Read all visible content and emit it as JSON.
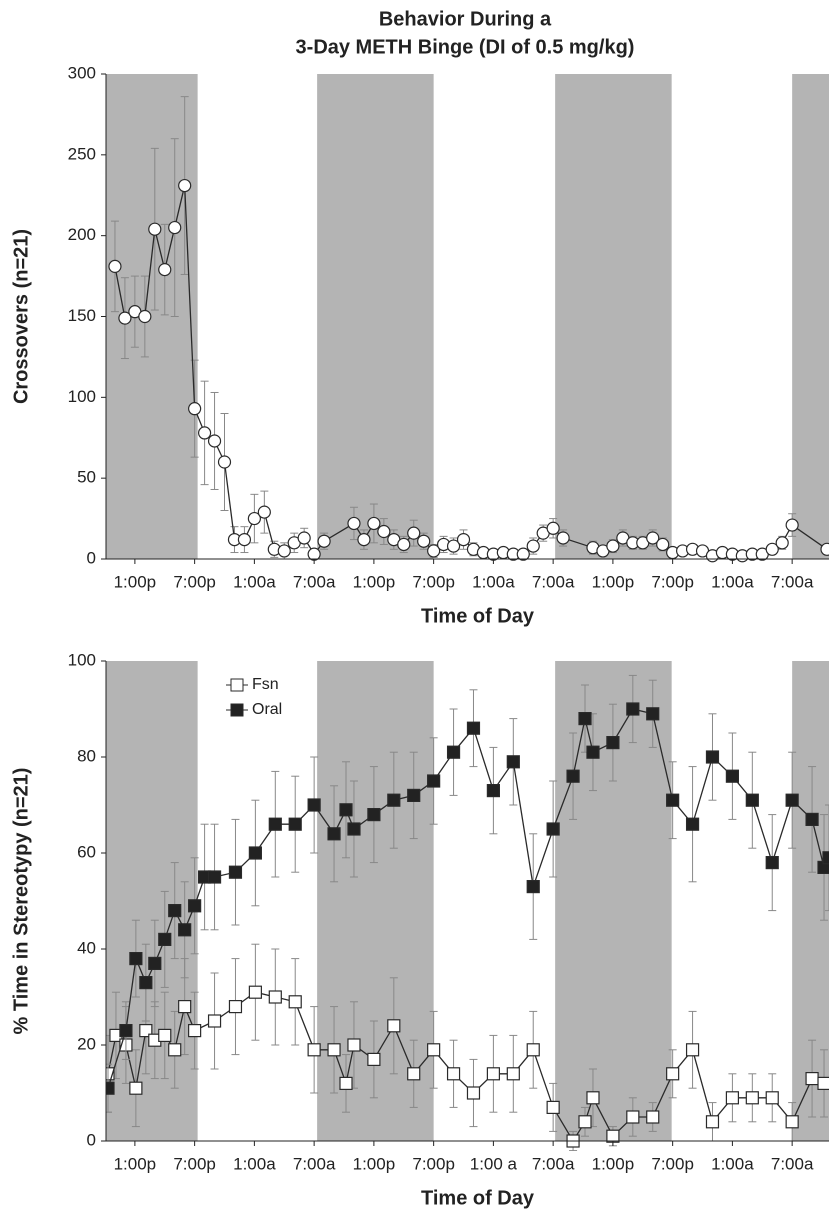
{
  "chart_data": [
    {
      "type": "line",
      "title": [
        "Behavior During a",
        "3-Day METH Binge (DI of 0.5 mg/kg)"
      ],
      "xlabel": "Time of Day",
      "ylabel": "Crossovers (n=21)",
      "xlim": [
        -2.9,
        69.7
      ],
      "ylim": [
        0,
        300
      ],
      "yticks": [
        0,
        50,
        100,
        150,
        200,
        250,
        300
      ],
      "xticks": [
        {
          "value": 0,
          "label": "1:00p"
        },
        {
          "value": 6,
          "label": "7:00p"
        },
        {
          "value": 12,
          "label": "1:00a"
        },
        {
          "value": 18,
          "label": "7:00a"
        },
        {
          "value": 24,
          "label": "1:00p"
        },
        {
          "value": 30,
          "label": "7:00p"
        },
        {
          "value": 36,
          "label": "1:00a"
        },
        {
          "value": 42,
          "label": "7:00a"
        },
        {
          "value": 48,
          "label": "1:00p"
        },
        {
          "value": 54,
          "label": "7:00p"
        },
        {
          "value": 60,
          "label": "1:00a"
        },
        {
          "value": 66,
          "label": "7:00a"
        }
      ],
      "shaded_spans": [
        [
          -2.9,
          6.3
        ],
        [
          18.3,
          30
        ],
        [
          42.2,
          53.9
        ],
        [
          66,
          69.7
        ]
      ],
      "shade_color": "#b4b4b4",
      "series": [
        {
          "marker": "circle",
          "color": "#2a2a2a",
          "marker_fill": "#ffffff",
          "x": [
            -2,
            -1,
            0,
            1,
            2,
            3,
            4,
            5,
            6,
            7,
            8,
            9,
            10,
            11,
            12,
            13,
            14,
            15,
            16,
            17,
            18,
            19,
            22,
            23,
            24,
            25,
            26,
            27,
            28,
            29,
            30,
            31,
            32,
            33,
            34,
            35,
            36,
            37,
            38,
            39,
            40,
            41,
            42,
            43,
            46,
            47,
            48,
            49,
            50,
            51,
            52,
            53,
            54,
            55,
            56,
            57,
            58,
            59,
            60,
            61,
            62,
            63,
            64,
            65,
            66,
            69.5
          ],
          "values": [
            181,
            149,
            153,
            150,
            204,
            179,
            205,
            231,
            93,
            78,
            73,
            60,
            12,
            12,
            25,
            29,
            6,
            5,
            10,
            13,
            3,
            11,
            22,
            12,
            22,
            17,
            12,
            9,
            16,
            11,
            5,
            9,
            8,
            12,
            6,
            4,
            3,
            4,
            3,
            3,
            8,
            16,
            19,
            13,
            7,
            5,
            8,
            13,
            10,
            10,
            13,
            9,
            4,
            5,
            6,
            5,
            2,
            4,
            3,
            2,
            3,
            3,
            6,
            10,
            21,
            6
          ],
          "errors": [
            28,
            25,
            22,
            25,
            50,
            28,
            55,
            55,
            30,
            32,
            30,
            30,
            8,
            8,
            15,
            13,
            5,
            5,
            6,
            6,
            3,
            5,
            10,
            6,
            12,
            8,
            6,
            5,
            8,
            5,
            4,
            5,
            5,
            6,
            4,
            3,
            3,
            3,
            3,
            3,
            5,
            5,
            6,
            5,
            4,
            3,
            4,
            5,
            4,
            4,
            5,
            4,
            3,
            3,
            3,
            3,
            2,
            3,
            2,
            2,
            2,
            2,
            3,
            4,
            7,
            3
          ]
        }
      ]
    },
    {
      "type": "line",
      "xlabel": "Time of Day",
      "ylabel": "% Time in Stereotypy (n=21)",
      "xlim": [
        -2.9,
        69.7
      ],
      "ylim": [
        0,
        100
      ],
      "yticks": [
        0,
        20,
        40,
        60,
        80,
        100
      ],
      "xticks": [
        {
          "value": 0,
          "label": "1:00p"
        },
        {
          "value": 6,
          "label": "7:00p"
        },
        {
          "value": 12,
          "label": "1:00a"
        },
        {
          "value": 18,
          "label": "7:00a"
        },
        {
          "value": 24,
          "label": "1:00p"
        },
        {
          "value": 30,
          "label": "7:00p"
        },
        {
          "value": 36,
          "label": "1:00 a"
        },
        {
          "value": 42,
          "label": "7:00a"
        },
        {
          "value": 48,
          "label": "1:00p"
        },
        {
          "value": 54,
          "label": "7:00p"
        },
        {
          "value": 60,
          "label": "1:00a"
        },
        {
          "value": 66,
          "label": "7:00a"
        }
      ],
      "shaded_spans": [
        [
          -2.9,
          6.3
        ],
        [
          18.3,
          30
        ],
        [
          42.2,
          53.9
        ],
        [
          66,
          69.7
        ]
      ],
      "shade_color": "#b4b4b4",
      "legend": "upper left",
      "series": [
        {
          "name": "Fsn",
          "marker": "square",
          "color": "#2a2a2a",
          "marker_fill": "#ffffff",
          "x": [
            -2.7,
            -1.9,
            -0.9,
            0.1,
            1.1,
            2,
            3,
            4,
            5,
            6,
            8,
            10.1,
            12.1,
            14.1,
            16.1,
            18,
            20,
            21.2,
            22,
            24,
            26,
            28,
            30,
            32,
            34,
            36,
            38,
            40,
            42,
            44,
            45.2,
            46,
            48,
            50,
            52,
            54,
            56,
            58,
            60,
            62,
            64,
            66,
            68,
            69.2
          ],
          "values": [
            14,
            22,
            20,
            11,
            23,
            21,
            22,
            19,
            28,
            23,
            25,
            28,
            31,
            30,
            29,
            19,
            19,
            12,
            20,
            17,
            24,
            14,
            19,
            14,
            10,
            14,
            14,
            19,
            7,
            0,
            4,
            9,
            1,
            5,
            5,
            14,
            19,
            4,
            9,
            9,
            9,
            4,
            13,
            12
          ],
          "errors": [
            8,
            9,
            8,
            8,
            9,
            8,
            9,
            8,
            10,
            8,
            10,
            10,
            10,
            10,
            9,
            9,
            9,
            6,
            9,
            8,
            10,
            7,
            8,
            7,
            7,
            8,
            8,
            8,
            5,
            2,
            3,
            6,
            2,
            4,
            3,
            5,
            8,
            4,
            5,
            5,
            5,
            4,
            8,
            7
          ]
        },
        {
          "name": "Oral",
          "marker": "square",
          "color": "#2a2a2a",
          "marker_fill": "#222222",
          "x": [
            -2.7,
            -0.9,
            0.1,
            1.1,
            2,
            3,
            4,
            5,
            6,
            7,
            8,
            10.1,
            12.1,
            14.1,
            16.1,
            18,
            20,
            21.2,
            22,
            24,
            26,
            28,
            30,
            32,
            34,
            36,
            38,
            40,
            42,
            44,
            45.2,
            46,
            48,
            50,
            52,
            54,
            56,
            58,
            60,
            62,
            64,
            66,
            68,
            69.2,
            69.7
          ],
          "values": [
            11,
            23,
            38,
            33,
            37,
            42,
            48,
            44,
            49,
            55,
            55,
            56,
            60,
            66,
            66,
            70,
            64,
            69,
            65,
            68,
            71,
            72,
            75,
            81,
            86,
            73,
            79,
            53,
            65,
            76,
            88,
            81,
            83,
            90,
            89,
            71,
            66,
            80,
            76,
            71,
            58,
            71,
            67,
            57,
            59
          ],
          "errors": [
            5,
            6,
            8,
            8,
            9,
            10,
            10,
            10,
            10,
            11,
            11,
            11,
            11,
            11,
            10,
            10,
            10,
            10,
            10,
            10,
            10,
            9,
            9,
            9,
            8,
            9,
            9,
            11,
            10,
            9,
            7,
            8,
            8,
            7,
            7,
            8,
            12,
            9,
            9,
            10,
            10,
            10,
            11,
            11,
            11
          ]
        }
      ]
    }
  ]
}
